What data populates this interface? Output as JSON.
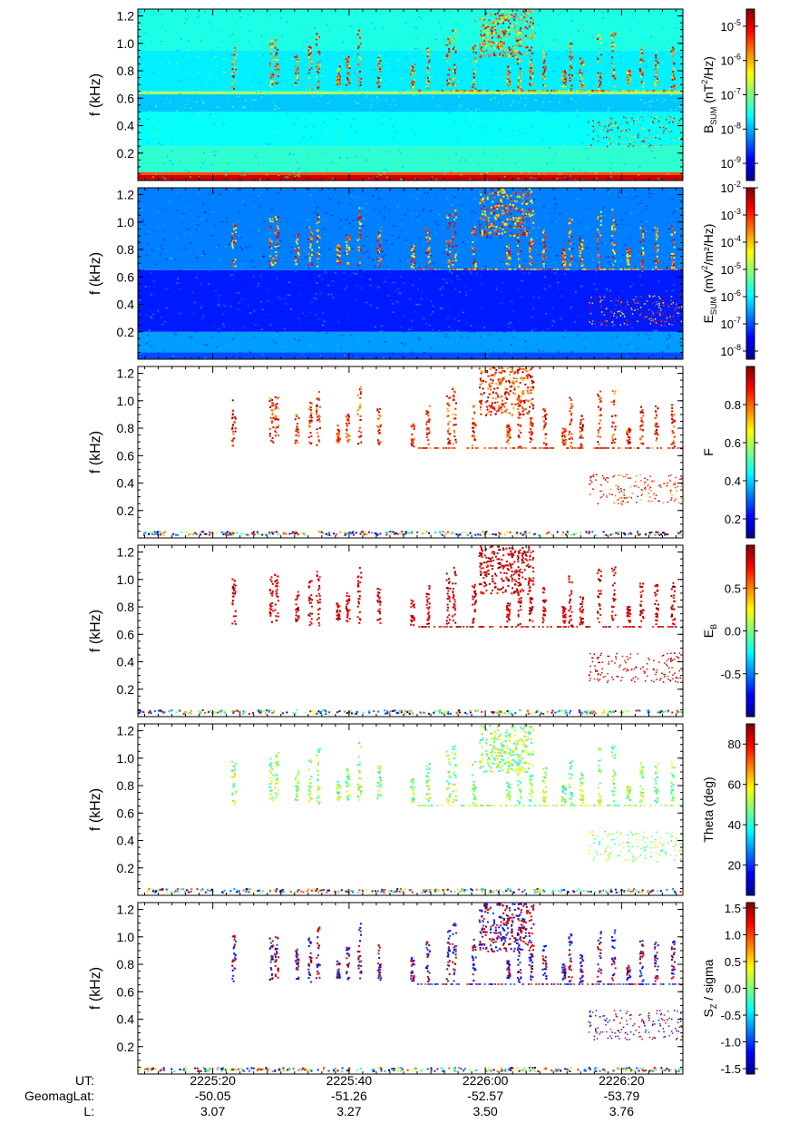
{
  "chart_data": {
    "type": "heatmap",
    "ylabel": "f (kHz)",
    "y_ticks": [
      0.2,
      0.4,
      0.6,
      0.8,
      1.0,
      1.2
    ],
    "ylim": [
      0.0,
      1.25
    ],
    "xlim": [
      "2225:09",
      "2226:29"
    ],
    "x_ticks": [
      {
        "ut": "2225:20",
        "geomaglat": "-50.05",
        "L": "3.07"
      },
      {
        "ut": "2225:40",
        "geomaglat": "-51.26",
        "L": "3.27"
      },
      {
        "ut": "2226:00",
        "geomaglat": "-52.57",
        "L": "3.50"
      },
      {
        "ut": "2226:20",
        "geomaglat": "-53.79",
        "L": "3.76"
      }
    ],
    "x_row_labels": [
      "UT:",
      "GeomagLat:",
      "L:"
    ],
    "panels": [
      {
        "id": "bsum",
        "colorbar": {
          "label_main": "B",
          "label_sub": "SUM",
          "label_rest": " (nT",
          "label_sup": "2",
          "label_end": "/Hz)",
          "scale": "log",
          "ticks": [
            {
              "base": "10",
              "exp": "-5"
            },
            {
              "base": "10",
              "exp": "-6"
            },
            {
              "base": "10",
              "exp": "-7"
            },
            {
              "base": "10",
              "exp": "-8"
            },
            {
              "base": "10",
              "exp": "-9"
            }
          ],
          "range_exp": [
            -9.5,
            -4.5
          ]
        }
      },
      {
        "id": "esum",
        "colorbar": {
          "label_main": "E",
          "label_sub": "SUM",
          "label_rest": " (mV",
          "label_sup": "2",
          "label_end": "/m²/Hz)",
          "scale": "log",
          "ticks": [
            {
              "base": "10",
              "exp": "-2"
            },
            {
              "base": "10",
              "exp": "-3"
            },
            {
              "base": "10",
              "exp": "-4"
            },
            {
              "base": "10",
              "exp": "-5"
            },
            {
              "base": "10",
              "exp": "-6"
            },
            {
              "base": "10",
              "exp": "-7"
            },
            {
              "base": "10",
              "exp": "-8"
            }
          ],
          "range_exp": [
            -8.3,
            -2.0
          ]
        }
      },
      {
        "id": "planarity",
        "colorbar": {
          "label_main": "F",
          "label_sub": "",
          "label_rest": "",
          "label_sup": "",
          "label_end": "",
          "scale": "linear",
          "ticks": [
            "0.8",
            "0.6",
            "0.4",
            "0.2"
          ],
          "range": [
            0.1,
            1.0
          ]
        }
      },
      {
        "id": "ellipticity",
        "colorbar": {
          "label_main": "E",
          "label_sub": "B",
          "label_rest": "",
          "label_sup": "",
          "label_end": "",
          "scale": "linear",
          "ticks": [
            "0.5",
            "0.0",
            "-0.5"
          ],
          "range": [
            -1.0,
            1.0
          ]
        }
      },
      {
        "id": "theta",
        "colorbar": {
          "label_main": "Theta (deg)",
          "label_sub": "",
          "label_rest": "",
          "label_sup": "",
          "label_end": "",
          "scale": "linear",
          "ticks": [
            "80",
            "60",
            "40",
            "20"
          ],
          "range": [
            5,
            90
          ]
        }
      },
      {
        "id": "poynting",
        "colorbar": {
          "label_main": "S",
          "label_sub": "Z",
          "label_rest": " / sigma",
          "label_sup": "",
          "label_end": "",
          "scale": "linear",
          "ticks": [
            "1.5",
            "1.0",
            "0.5",
            "0.0",
            "-0.5",
            "-1.0",
            "-1.5"
          ],
          "range": [
            -1.6,
            1.6
          ]
        }
      }
    ]
  }
}
